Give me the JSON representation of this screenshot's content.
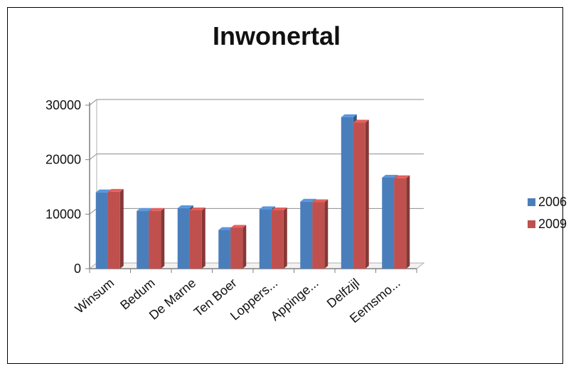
{
  "chart_data": {
    "type": "bar",
    "title": "Inwonertal",
    "xlabel": "",
    "ylabel": "",
    "categories": [
      "Winsum",
      "Bedum",
      "De Marne",
      "Ten Boer",
      "Loppers...",
      "Appinge...",
      "Delfzijl",
      "Eemsmo..."
    ],
    "series": [
      {
        "name": "2006",
        "values": [
          14000,
          10600,
          11100,
          7100,
          10900,
          12300,
          27800,
          16700
        ],
        "color": "#4a7ebb"
      },
      {
        "name": "2009",
        "values": [
          14100,
          10600,
          10700,
          7500,
          10700,
          12200,
          26800,
          16600
        ],
        "color": "#c0504d"
      }
    ],
    "y_ticks": [
      "0",
      "10000",
      "20000",
      "30000"
    ],
    "ylim": [
      0,
      30000
    ],
    "grid": true,
    "legend_position": "right"
  }
}
